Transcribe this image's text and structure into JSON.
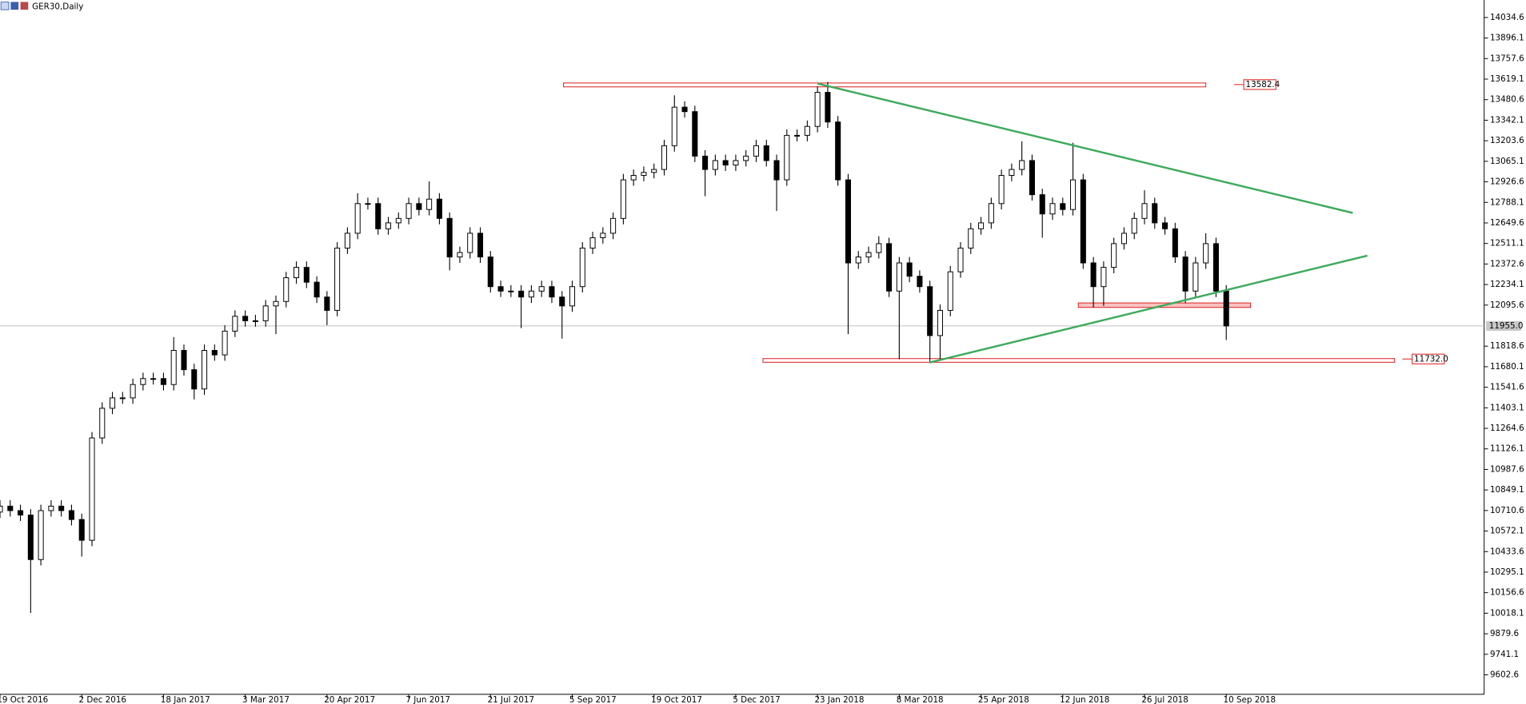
{
  "chart_data": {
    "type": "candlestick",
    "title": "GER30,Daily",
    "categories": [
      "19 Oct 2016",
      null,
      null,
      null,
      null,
      null,
      null,
      null,
      "2 Dec 2016",
      null,
      null,
      null,
      null,
      null,
      null,
      null,
      "18 Jan 2017",
      null,
      null,
      null,
      null,
      null,
      null,
      null,
      "3 Mar 2017",
      null,
      null,
      null,
      null,
      null,
      null,
      null,
      "20 Apr 2017",
      null,
      null,
      null,
      null,
      null,
      null,
      null,
      "7 Jun 2017",
      null,
      null,
      null,
      null,
      null,
      null,
      null,
      "21 Jul 2017",
      null,
      null,
      null,
      null,
      null,
      null,
      null,
      "5 Sep 2017",
      null,
      null,
      null,
      null,
      null,
      null,
      null,
      "19 Oct 2017",
      null,
      null,
      null,
      null,
      null,
      null,
      null,
      "5 Dec 2017",
      null,
      null,
      null,
      null,
      null,
      null,
      null,
      "23 Jan 2018",
      null,
      null,
      null,
      null,
      null,
      null,
      null,
      "8 Mar 2018",
      null,
      null,
      null,
      null,
      null,
      null,
      null,
      "25 Apr 2018",
      null,
      null,
      null,
      null,
      null,
      null,
      null,
      "12 Jun 2018",
      null,
      null,
      null,
      null,
      null,
      null,
      null,
      "26 Jul 2018",
      null,
      null,
      null,
      null,
      null,
      null,
      null,
      "10 Sep 2018"
    ],
    "open": [
      10700,
      10740,
      10710,
      10680,
      10380,
      10710,
      10740,
      10710,
      10650,
      10510,
      11200,
      11400,
      11470,
      11470,
      11560,
      11600,
      11600,
      11560,
      11790,
      11660,
      11530,
      11790,
      11760,
      11920,
      12020,
      11990,
      11990,
      12090,
      12120,
      12280,
      12350,
      12250,
      12150,
      12060,
      12480,
      12580,
      12780,
      12780,
      12610,
      12650,
      12680,
      12780,
      12740,
      12810,
      12680,
      12420,
      12450,
      12580,
      12420,
      12220,
      12190,
      12190,
      12150,
      12190,
      12220,
      12150,
      12090,
      12220,
      12480,
      12550,
      12580,
      12680,
      12940,
      12970,
      12990,
      13010,
      13170,
      13430,
      13400,
      13100,
      13010,
      13070,
      13040,
      13070,
      13100,
      13170,
      13070,
      12940,
      13240,
      13240,
      13300,
      13530,
      13330,
      12940,
      12380,
      12420,
      12450,
      12510,
      12190,
      12380,
      12290,
      12220,
      11890,
      12060,
      12320,
      12480,
      12610,
      12650,
      12780,
      12970,
      13010,
      13070,
      12840,
      12710,
      12780,
      12740,
      12940,
      12380,
      12220,
      12350,
      12510,
      12580,
      12680,
      12780,
      12650,
      12610,
      12420,
      12190,
      12380,
      12510,
      12190
    ],
    "high": [
      10780,
      10780,
      10750,
      10720,
      10750,
      10780,
      10780,
      10750,
      10690,
      11240,
      11440,
      11510,
      11510,
      11600,
      11640,
      11640,
      11640,
      11880,
      11830,
      11700,
      11830,
      11830,
      11960,
      12060,
      12060,
      12030,
      12130,
      12160,
      12320,
      12390,
      12390,
      12290,
      12190,
      12520,
      12620,
      12850,
      12820,
      12820,
      12690,
      12720,
      12820,
      12820,
      12930,
      12850,
      12720,
      12490,
      12620,
      12620,
      12460,
      12260,
      12230,
      12230,
      12230,
      12260,
      12260,
      12190,
      12260,
      12520,
      12590,
      12620,
      12720,
      12980,
      13010,
      13030,
      13050,
      13210,
      13510,
      13470,
      13440,
      13140,
      13110,
      13110,
      13110,
      13140,
      13210,
      13210,
      13110,
      13280,
      13280,
      13340,
      13570,
      13600,
      13370,
      12980,
      12460,
      12490,
      12560,
      12550,
      12420,
      12420,
      12330,
      12260,
      12100,
      12360,
      12520,
      12650,
      12690,
      12820,
      13010,
      13050,
      13200,
      13110,
      12880,
      12820,
      12820,
      13190,
      12980,
      12420,
      12390,
      12550,
      12620,
      12720,
      12870,
      12820,
      12690,
      12650,
      12460,
      12420,
      12580,
      12550,
      12230
    ],
    "low": [
      10660,
      10670,
      10640,
      10020,
      10340,
      10670,
      10670,
      10610,
      10400,
      10470,
      11160,
      11360,
      11430,
      11430,
      11520,
      11560,
      11520,
      11520,
      11620,
      11460,
      11490,
      11720,
      11720,
      11880,
      11950,
      11950,
      11950,
      11900,
      12080,
      12240,
      12210,
      12110,
      11960,
      12020,
      12440,
      12540,
      12740,
      12570,
      12570,
      12610,
      12640,
      12700,
      12700,
      12640,
      12330,
      12380,
      12410,
      12380,
      12180,
      12150,
      12150,
      11940,
      12110,
      12150,
      12110,
      11870,
      12050,
      12180,
      12440,
      12510,
      12540,
      12640,
      12900,
      12930,
      12950,
      12970,
      13130,
      13360,
      13060,
      12830,
      12970,
      13000,
      13000,
      13030,
      13060,
      13030,
      12730,
      12900,
      13200,
      13200,
      13260,
      13290,
      12900,
      11900,
      12340,
      12380,
      12410,
      12150,
      11730,
      12250,
      12180,
      11710,
      11730,
      12020,
      12280,
      12440,
      12570,
      12610,
      12740,
      12930,
      12970,
      12800,
      12550,
      12670,
      12700,
      12700,
      12340,
      12080,
      12090,
      12310,
      12470,
      12540,
      12640,
      12610,
      12570,
      12380,
      12110,
      12150,
      12340,
      12150,
      11860
    ],
    "close": [
      10740,
      10710,
      10680,
      10380,
      10710,
      10740,
      10710,
      10650,
      10510,
      11200,
      11400,
      11470,
      11470,
      11560,
      11600,
      11600,
      11560,
      11790,
      11660,
      11530,
      11790,
      11760,
      11920,
      12020,
      11990,
      11990,
      12090,
      12120,
      12280,
      12350,
      12250,
      12150,
      12060,
      12480,
      12580,
      12780,
      12780,
      12610,
      12650,
      12680,
      12780,
      12740,
      12810,
      12680,
      12420,
      12450,
      12580,
      12420,
      12220,
      12190,
      12190,
      12150,
      12190,
      12220,
      12150,
      12090,
      12220,
      12480,
      12550,
      12580,
      12680,
      12940,
      12970,
      12990,
      13010,
      13170,
      13430,
      13400,
      13100,
      13010,
      13070,
      13040,
      13070,
      13100,
      13170,
      13070,
      12940,
      13240,
      13240,
      13300,
      13530,
      13330,
      12940,
      12380,
      12420,
      12450,
      12510,
      12190,
      12380,
      12290,
      12220,
      11890,
      12060,
      12320,
      12480,
      12610,
      12650,
      12780,
      12970,
      13010,
      13070,
      12840,
      12710,
      12780,
      12740,
      12940,
      12380,
      12220,
      12350,
      12510,
      12580,
      12680,
      12780,
      12650,
      12610,
      12420,
      12190,
      12380,
      12510,
      12190,
      11955
    ],
    "ylim": [
      9471.6,
      14152.6
    ],
    "yticks": [
      14034.6,
      13896.1,
      13757.6,
      13619.1,
      13480.6,
      13342.1,
      13203.6,
      13065.1,
      12926.6,
      12788.1,
      12649.6,
      12511.1,
      12372.6,
      12234.1,
      12095.6,
      11818.6,
      11680.1,
      11541.6,
      11403.1,
      11264.6,
      11126.1,
      10987.6,
      10849.1,
      10710.6,
      10572.1,
      10433.6,
      10295.1,
      10156.6,
      10018.1,
      9879.6,
      9741.1,
      9602.6
    ],
    "current_price": {
      "value": 11955,
      "label": "11955.0"
    },
    "zones": [
      {
        "low": 13567,
        "high": 13593,
        "level": 13582.4,
        "color": "#e03030"
      },
      {
        "low": 12080,
        "high": 12110,
        "color": "#e03030"
      },
      {
        "low": 11710,
        "high": 11735,
        "level": {
          "value": 11732,
          "label": "11732.0"
        },
        "color": "#e03030"
      }
    ],
    "trendlines": [
      {
        "color": "#3daa5c",
        "values": [
          13589,
          12717
        ]
      },
      {
        "color": "#3daa5c",
        "values": [
          11708,
          12429
        ]
      }
    ]
  }
}
